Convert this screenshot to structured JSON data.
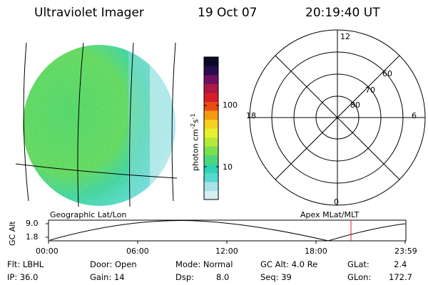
{
  "header": {
    "instrument": "Ultraviolet Imager",
    "date": "19 Oct 07",
    "time": "20:19:40 UT"
  },
  "colorbar": {
    "label": "photon cm",
    "label_exp1": "-2",
    "label_mid": "s",
    "label_exp2": "-1",
    "tick_100": "100",
    "tick_10": "10",
    "colors": [
      "#d6eef2",
      "#a8e2e6",
      "#55d9d0",
      "#2fd3b4",
      "#4fd67a",
      "#7be04d",
      "#b6e83a",
      "#e8ef2c",
      "#f5d11c",
      "#f49a12",
      "#ea4d14",
      "#d61e2b",
      "#b01646",
      "#6e1060",
      "#2a0c50",
      "#0a0a28"
    ]
  },
  "polar": {
    "mlt_labels": {
      "top": "12",
      "left": "18",
      "right": "6",
      "bottom": "0"
    },
    "lat_labels": [
      "60",
      "70",
      "80"
    ]
  },
  "timeline": {
    "left_label": "Geographic Lat/Lon",
    "right_label": "Apex MLat/MLT",
    "axis_label": "GC Alt",
    "y_top": "9.0",
    "y_bottom": "1.8",
    "x_ticks": [
      "00:00",
      "06:00",
      "12:00",
      "18:00",
      "23:59"
    ],
    "marker_color": "#e02020"
  },
  "info": {
    "row1": {
      "flt": "Flt: LBHL",
      "door": "Door: Open",
      "mode": "Mode: Normal",
      "gcalt": "GC Alt: 4.0 Re",
      "glat_label": "GLat:",
      "glat_value": "2.4"
    },
    "row2": {
      "ip": "IP: 36.0",
      "gain": "Gain: 14",
      "dsp_label": "Dsp:",
      "dsp_value": "8.0",
      "seq": "Seq: 39",
      "glon_label": "GLon:",
      "glon_value": "172.7"
    }
  }
}
